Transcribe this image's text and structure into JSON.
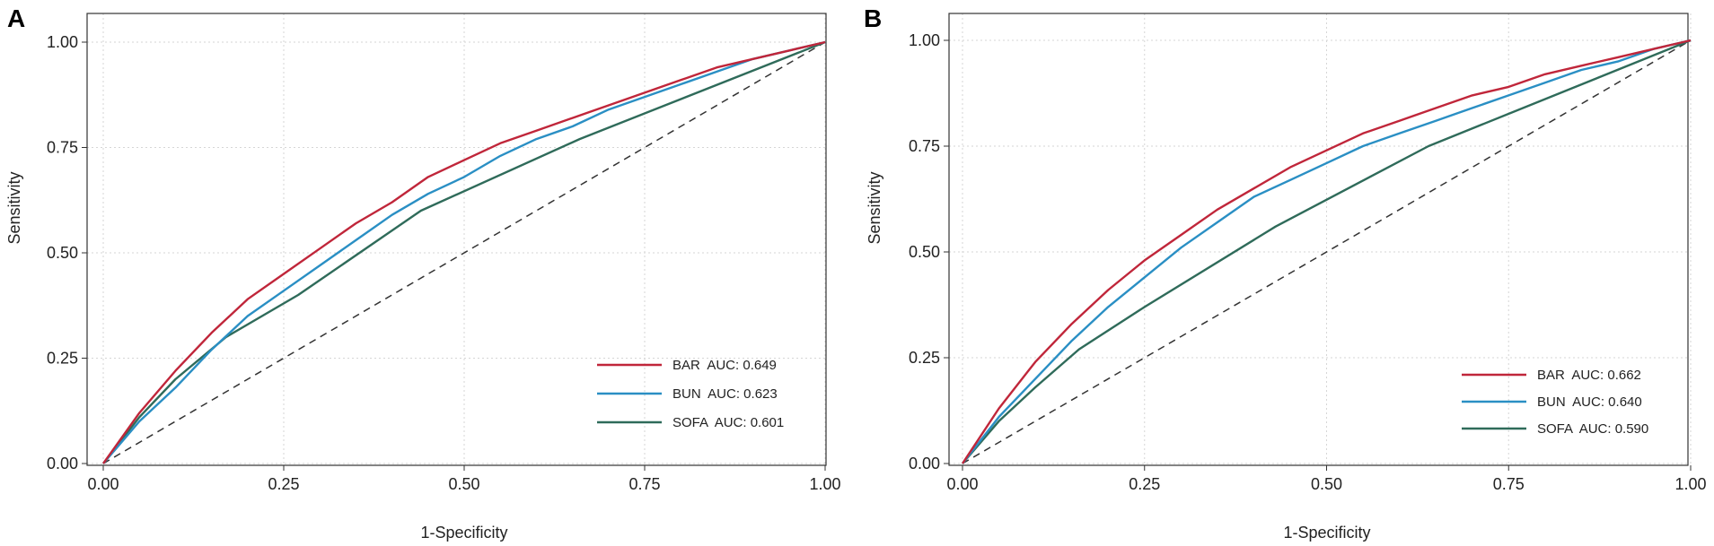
{
  "chart_data": [
    {
      "panel": "A",
      "type": "line",
      "title": "",
      "xlabel": "1-Specificity",
      "ylabel": "Sensitivity",
      "xlim": [
        0,
        1
      ],
      "ylim": [
        0,
        1
      ],
      "xticks": [
        "0.00",
        "0.25",
        "0.50",
        "0.75",
        "1.00"
      ],
      "yticks": [
        "0.00",
        "0.25",
        "0.50",
        "0.75",
        "1.00"
      ],
      "grid": true,
      "legend_position": "bottom-right",
      "reference_line": {
        "name": "chance",
        "style": "dashed",
        "color": "#333333"
      },
      "series": [
        {
          "name": "BAR",
          "label": "BAR  AUC: 0.649",
          "auc": 0.649,
          "color": "#c0263a",
          "x": [
            0,
            0.05,
            0.1,
            0.15,
            0.2,
            0.25,
            0.3,
            0.35,
            0.4,
            0.45,
            0.5,
            0.55,
            0.6,
            0.65,
            0.7,
            0.75,
            0.8,
            0.85,
            0.9,
            0.95,
            1
          ],
          "y": [
            0,
            0.12,
            0.22,
            0.31,
            0.39,
            0.45,
            0.51,
            0.57,
            0.62,
            0.68,
            0.72,
            0.76,
            0.79,
            0.82,
            0.85,
            0.88,
            0.91,
            0.94,
            0.96,
            0.98,
            1
          ]
        },
        {
          "name": "BUN",
          "label": "BUN  AUC: 0.623",
          "auc": 0.623,
          "color": "#2a8fc4",
          "x": [
            0,
            0.05,
            0.1,
            0.15,
            0.2,
            0.25,
            0.3,
            0.35,
            0.4,
            0.45,
            0.5,
            0.55,
            0.6,
            0.65,
            0.7,
            0.75,
            0.8,
            0.85,
            0.9,
            0.95,
            1
          ],
          "y": [
            0,
            0.1,
            0.18,
            0.27,
            0.35,
            0.41,
            0.47,
            0.53,
            0.59,
            0.64,
            0.68,
            0.73,
            0.77,
            0.8,
            0.84,
            0.87,
            0.9,
            0.93,
            0.96,
            0.98,
            1
          ]
        },
        {
          "name": "SOFA",
          "label": "SOFA  AUC: 0.601",
          "auc": 0.601,
          "color": "#2f6b5a",
          "x": [
            0,
            0.05,
            0.1,
            0.17,
            0.27,
            0.44,
            0.66,
            1
          ],
          "y": [
            0,
            0.11,
            0.2,
            0.3,
            0.4,
            0.6,
            0.77,
            1
          ]
        }
      ]
    },
    {
      "panel": "B",
      "type": "line",
      "title": "",
      "xlabel": "1-Specificity",
      "ylabel": "Sensitivity",
      "xlim": [
        0,
        1
      ],
      "ylim": [
        0,
        1
      ],
      "xticks": [
        "0.00",
        "0.25",
        "0.50",
        "0.75",
        "1.00"
      ],
      "yticks": [
        "0.00",
        "0.25",
        "0.50",
        "0.75",
        "1.00"
      ],
      "grid": true,
      "legend_position": "bottom-right",
      "reference_line": {
        "name": "chance",
        "style": "dashed",
        "color": "#333333"
      },
      "series": [
        {
          "name": "BAR",
          "label": "BAR  AUC: 0.662",
          "auc": 0.662,
          "color": "#c0263a",
          "x": [
            0,
            0.05,
            0.1,
            0.15,
            0.2,
            0.25,
            0.3,
            0.35,
            0.4,
            0.45,
            0.5,
            0.55,
            0.6,
            0.65,
            0.7,
            0.75,
            0.8,
            0.85,
            0.9,
            0.95,
            1
          ],
          "y": [
            0,
            0.13,
            0.24,
            0.33,
            0.41,
            0.48,
            0.54,
            0.6,
            0.65,
            0.7,
            0.74,
            0.78,
            0.81,
            0.84,
            0.87,
            0.89,
            0.92,
            0.94,
            0.96,
            0.98,
            1
          ]
        },
        {
          "name": "BUN",
          "label": "BUN  AUC: 0.640",
          "auc": 0.64,
          "color": "#2a8fc4",
          "x": [
            0,
            0.05,
            0.1,
            0.15,
            0.2,
            0.25,
            0.3,
            0.35,
            0.4,
            0.45,
            0.5,
            0.55,
            0.6,
            0.65,
            0.7,
            0.75,
            0.8,
            0.85,
            0.9,
            0.95,
            1
          ],
          "y": [
            0,
            0.11,
            0.2,
            0.29,
            0.37,
            0.44,
            0.51,
            0.57,
            0.63,
            0.67,
            0.71,
            0.75,
            0.78,
            0.81,
            0.84,
            0.87,
            0.9,
            0.93,
            0.95,
            0.98,
            1
          ]
        },
        {
          "name": "SOFA",
          "label": "SOFA  AUC: 0.590",
          "auc": 0.59,
          "color": "#2f6b5a",
          "x": [
            0,
            0.05,
            0.1,
            0.16,
            0.25,
            0.43,
            0.64,
            1
          ],
          "y": [
            0,
            0.1,
            0.18,
            0.27,
            0.37,
            0.56,
            0.75,
            1
          ]
        }
      ]
    }
  ]
}
